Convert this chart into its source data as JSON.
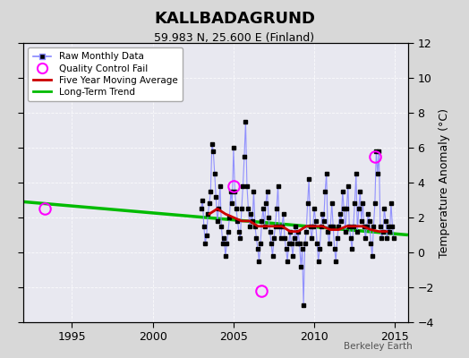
{
  "title": "KALLBADAGRUND",
  "subtitle": "59.983 N, 25.600 E (Finland)",
  "ylabel": "Temperature Anomaly (°C)",
  "xlabel_credit": "Berkeley Earth",
  "xlim": [
    1992.0,
    2015.8
  ],
  "ylim": [
    -4,
    12
  ],
  "yticks": [
    -4,
    -2,
    0,
    2,
    4,
    6,
    8,
    10,
    12
  ],
  "xticks": [
    1995,
    2000,
    2005,
    2010,
    2015
  ],
  "bg_color": "#d8d8d8",
  "plot_bg": "#e8e8f0",
  "raw_line_color": "#8888ff",
  "raw_marker_color": "#000000",
  "ma_color": "#cc0000",
  "trend_color": "#00bb00",
  "qc_color": "#ff00ff",
  "grid_color": "#ffffff",
  "raw_monthly": [
    [
      2003.0,
      2.5
    ],
    [
      2003.083,
      3.0
    ],
    [
      2003.167,
      1.5
    ],
    [
      2003.25,
      0.5
    ],
    [
      2003.333,
      1.0
    ],
    [
      2003.417,
      2.2
    ],
    [
      2003.5,
      2.8
    ],
    [
      2003.583,
      3.5
    ],
    [
      2003.667,
      6.2
    ],
    [
      2003.75,
      5.8
    ],
    [
      2003.833,
      4.5
    ],
    [
      2003.917,
      3.2
    ],
    [
      2004.0,
      1.8
    ],
    [
      2004.083,
      2.5
    ],
    [
      2004.167,
      3.8
    ],
    [
      2004.25,
      1.5
    ],
    [
      2004.333,
      0.5
    ],
    [
      2004.417,
      0.8
    ],
    [
      2004.5,
      -0.2
    ],
    [
      2004.583,
      0.5
    ],
    [
      2004.667,
      1.2
    ],
    [
      2004.75,
      2.0
    ],
    [
      2004.833,
      3.5
    ],
    [
      2004.917,
      2.8
    ],
    [
      2005.0,
      6.0
    ],
    [
      2005.083,
      3.5
    ],
    [
      2005.167,
      2.5
    ],
    [
      2005.25,
      1.8
    ],
    [
      2005.333,
      1.2
    ],
    [
      2005.417,
      0.8
    ],
    [
      2005.5,
      2.5
    ],
    [
      2005.583,
      3.8
    ],
    [
      2005.667,
      5.5
    ],
    [
      2005.75,
      7.5
    ],
    [
      2005.833,
      3.8
    ],
    [
      2005.917,
      2.5
    ],
    [
      2006.0,
      1.5
    ],
    [
      2006.083,
      2.2
    ],
    [
      2006.167,
      1.8
    ],
    [
      2006.25,
      3.5
    ],
    [
      2006.333,
      1.5
    ],
    [
      2006.417,
      0.8
    ],
    [
      2006.5,
      0.2
    ],
    [
      2006.583,
      -0.5
    ],
    [
      2006.667,
      0.5
    ],
    [
      2006.75,
      1.8
    ],
    [
      2006.833,
      2.5
    ],
    [
      2006.917,
      1.5
    ],
    [
      2007.0,
      2.8
    ],
    [
      2007.083,
      3.5
    ],
    [
      2007.167,
      2.0
    ],
    [
      2007.25,
      1.2
    ],
    [
      2007.333,
      0.5
    ],
    [
      2007.417,
      -0.2
    ],
    [
      2007.5,
      0.8
    ],
    [
      2007.583,
      1.5
    ],
    [
      2007.667,
      2.5
    ],
    [
      2007.75,
      3.8
    ],
    [
      2007.833,
      1.5
    ],
    [
      2007.917,
      0.8
    ],
    [
      2008.0,
      1.5
    ],
    [
      2008.083,
      2.2
    ],
    [
      2008.167,
      0.8
    ],
    [
      2008.25,
      0.2
    ],
    [
      2008.333,
      -0.5
    ],
    [
      2008.417,
      0.5
    ],
    [
      2008.5,
      1.2
    ],
    [
      2008.583,
      0.5
    ],
    [
      2008.667,
      -0.2
    ],
    [
      2008.75,
      0.8
    ],
    [
      2008.833,
      1.5
    ],
    [
      2008.917,
      0.5
    ],
    [
      2009.0,
      1.2
    ],
    [
      2009.083,
      0.5
    ],
    [
      2009.167,
      -0.8
    ],
    [
      2009.25,
      0.2
    ],
    [
      2009.333,
      -3.0
    ],
    [
      2009.417,
      0.5
    ],
    [
      2009.5,
      1.2
    ],
    [
      2009.583,
      2.8
    ],
    [
      2009.667,
      4.2
    ],
    [
      2009.75,
      1.5
    ],
    [
      2009.833,
      0.8
    ],
    [
      2009.917,
      1.5
    ],
    [
      2010.0,
      2.5
    ],
    [
      2010.083,
      1.8
    ],
    [
      2010.167,
      0.5
    ],
    [
      2010.25,
      -0.5
    ],
    [
      2010.333,
      0.2
    ],
    [
      2010.417,
      1.5
    ],
    [
      2010.5,
      2.2
    ],
    [
      2010.583,
      1.8
    ],
    [
      2010.667,
      3.5
    ],
    [
      2010.75,
      4.5
    ],
    [
      2010.833,
      1.2
    ],
    [
      2010.917,
      0.5
    ],
    [
      2011.0,
      1.5
    ],
    [
      2011.083,
      2.8
    ],
    [
      2011.167,
      1.5
    ],
    [
      2011.25,
      0.2
    ],
    [
      2011.333,
      -0.5
    ],
    [
      2011.417,
      0.8
    ],
    [
      2011.5,
      1.5
    ],
    [
      2011.583,
      2.2
    ],
    [
      2011.667,
      1.8
    ],
    [
      2011.75,
      3.5
    ],
    [
      2011.833,
      2.5
    ],
    [
      2011.917,
      1.2
    ],
    [
      2012.0,
      2.5
    ],
    [
      2012.083,
      3.8
    ],
    [
      2012.167,
      1.5
    ],
    [
      2012.25,
      0.8
    ],
    [
      2012.333,
      0.2
    ],
    [
      2012.417,
      1.5
    ],
    [
      2012.5,
      2.8
    ],
    [
      2012.583,
      4.5
    ],
    [
      2012.667,
      1.2
    ],
    [
      2012.75,
      2.5
    ],
    [
      2012.833,
      3.5
    ],
    [
      2012.917,
      1.8
    ],
    [
      2013.0,
      2.8
    ],
    [
      2013.083,
      1.5
    ],
    [
      2013.167,
      0.8
    ],
    [
      2013.25,
      1.5
    ],
    [
      2013.333,
      2.2
    ],
    [
      2013.417,
      1.8
    ],
    [
      2013.5,
      0.5
    ],
    [
      2013.583,
      -0.2
    ],
    [
      2013.667,
      1.5
    ],
    [
      2013.75,
      2.8
    ],
    [
      2013.833,
      5.8
    ],
    [
      2013.917,
      4.5
    ],
    [
      2014.0,
      5.8
    ],
    [
      2014.083,
      1.5
    ],
    [
      2014.167,
      0.8
    ],
    [
      2014.25,
      1.2
    ],
    [
      2014.333,
      2.5
    ],
    [
      2014.417,
      1.8
    ],
    [
      2014.5,
      0.8
    ],
    [
      2014.583,
      1.5
    ],
    [
      2014.667,
      1.2
    ],
    [
      2014.75,
      2.8
    ],
    [
      2014.833,
      1.5
    ],
    [
      2014.917,
      0.8
    ]
  ],
  "qc_fail_points": [
    [
      1993.3,
      2.5
    ],
    [
      2005.0,
      3.8
    ],
    [
      2006.75,
      -2.2
    ],
    [
      2013.75,
      5.5
    ]
  ],
  "trend_x": [
    1992.0,
    2015.8
  ],
  "trend_y": [
    2.9,
    1.0
  ],
  "ma_x": [
    2003.5,
    2004.0,
    2004.5,
    2005.0,
    2005.5,
    2006.0,
    2006.5,
    2007.0,
    2007.5,
    2008.0,
    2008.5,
    2009.0,
    2009.5,
    2010.0,
    2010.5,
    2011.0,
    2011.5,
    2012.0,
    2012.5,
    2013.0,
    2013.5,
    2014.0,
    2014.5
  ],
  "ma_y": [
    2.2,
    2.5,
    2.2,
    2.0,
    1.8,
    1.8,
    1.5,
    1.5,
    1.5,
    1.5,
    1.2,
    1.2,
    1.5,
    1.5,
    1.5,
    1.3,
    1.3,
    1.5,
    1.5,
    1.5,
    1.3,
    1.2,
    1.2
  ]
}
